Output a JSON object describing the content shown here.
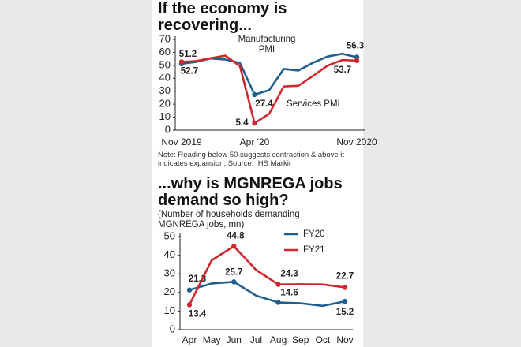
{
  "charts": [
    {
      "chart_data": {
        "type": "line",
        "title": "If the economy is recovering...",
        "categories": [
          "Nov 2019",
          null,
          null,
          null,
          null,
          "Apr '20",
          null,
          null,
          null,
          null,
          null,
          null,
          "Nov 2020"
        ],
        "series": [
          {
            "name": "Manufacturing PMI",
            "color": "#1f5f8f",
            "values": [
              51.2,
              52.7,
              55.3,
              54.5,
              51.8,
              27.4,
              30.8,
              47.2,
              46.0,
              52.0,
              56.8,
              58.9,
              56.3
            ]
          },
          {
            "name": "Services PMI",
            "color": "#d0262e",
            "values": [
              52.7,
              53.3,
              55.5,
              57.5,
              49.3,
              5.4,
              12.6,
              33.7,
              34.2,
              41.8,
              49.8,
              54.1,
              53.7
            ]
          }
        ],
        "ylim": [
          0,
          70
        ],
        "yticks": [
          0,
          10,
          20,
          30,
          40,
          50,
          60,
          70
        ],
        "note": "Note: Reading below 50 suggests contraction & above it indicates expansion; Source: IHS Markit"
      }
    },
    {
      "chart_data": {
        "type": "line",
        "title": "...why is MGNREGA jobs demand so high?",
        "subtitle": "(Number of households demanding MGNREGA jobs, mn)",
        "categories": [
          "Apr",
          "May",
          "Jun",
          "Jul",
          "Aug",
          "Sep",
          "Oct",
          "Nov"
        ],
        "series": [
          {
            "name": "FY20",
            "color": "#1f5f8f",
            "values": [
              21.3,
              24.8,
              25.7,
              18.3,
              14.6,
              14.2,
              12.8,
              15.2
            ]
          },
          {
            "name": "FY21",
            "color": "#d0262e",
            "values": [
              13.4,
              37.3,
              44.8,
              32.1,
              24.3,
              24.4,
              24.3,
              22.7
            ]
          }
        ],
        "ylim": [
          0,
          50
        ],
        "yticks": [
          0,
          10,
          20,
          30,
          40,
          50
        ],
        "legend": "top-right"
      }
    }
  ]
}
